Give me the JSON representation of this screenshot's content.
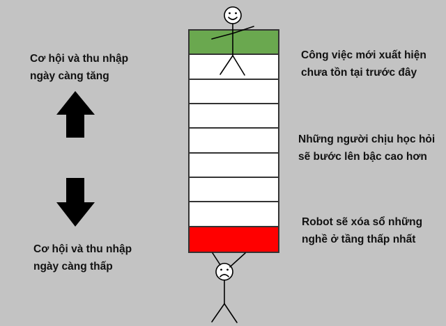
{
  "left_labels": {
    "top": [
      "Cơ hội và thu nhập",
      "ngày càng tăng"
    ],
    "bottom": [
      "Cơ hội và thu nhập",
      "ngày càng thấp"
    ]
  },
  "right_labels": {
    "top": [
      "Công việc mới xuất hiện",
      "chưa tồn tại trước đây"
    ],
    "middle": [
      "Những người chịu học hỏi",
      "sẽ bước lên bậc cao hơn"
    ],
    "bottom": [
      "Robot sẽ xóa sổ những",
      "nghề ở tầng thấp nhất"
    ]
  },
  "colors": {
    "top_rung": "#6aa84f",
    "bottom_rung": "#ff0000",
    "middle_rung": "#ffffff",
    "background": "#c3c3c3"
  },
  "ladder": {
    "rung_count": 9,
    "top_rung_state": "green",
    "bottom_rung_state": "red"
  },
  "icons": {
    "up_arrow": "up-arrow-icon",
    "down_arrow": "down-arrow-icon",
    "happy_person": "happy-stick-figure-icon",
    "sad_person": "sad-stick-figure-icon"
  }
}
